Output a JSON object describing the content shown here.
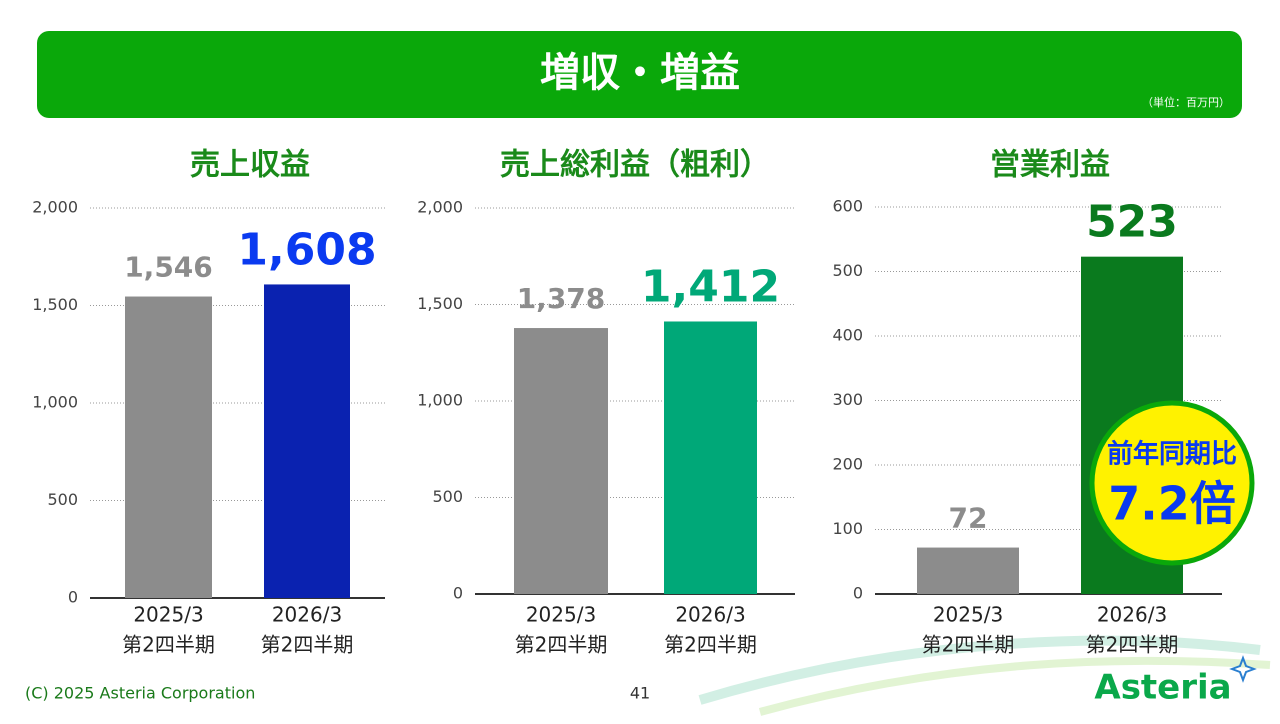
{
  "header": {
    "title": "増収・増益",
    "unit": "（単位：百万円）"
  },
  "chart_data": [
    {
      "type": "bar",
      "title": "売上収益",
      "categories": [
        [
          "2025/3",
          "第2四半期"
        ],
        [
          "2026/3",
          "第2四半期"
        ]
      ],
      "values": [
        1546,
        1608
      ],
      "value_labels": [
        "1,546",
        "1,608"
      ],
      "colors": [
        "#8c8c8c",
        "#0a22b0"
      ],
      "ylim": [
        0,
        2000
      ],
      "yticks": [
        0,
        500,
        {
          "value": 1000,
          "label": "1,000"
        },
        {
          "value": 1500,
          "label": "1,500"
        },
        {
          "value": 2000,
          "label": "2,000"
        }
      ],
      "grid": true
    },
    {
      "type": "bar",
      "title": "売上総利益（粗利）",
      "categories": [
        [
          "2025/3",
          "第2四半期"
        ],
        [
          "2026/3",
          "第2四半期"
        ]
      ],
      "values": [
        1378,
        1412
      ],
      "value_labels": [
        "1,378",
        "1,412"
      ],
      "colors": [
        "#8c8c8c",
        "#00a878"
      ],
      "ylim": [
        0,
        2000
      ],
      "yticks": [
        0,
        500,
        {
          "value": 1000,
          "label": "1,000"
        },
        {
          "value": 1500,
          "label": "1,500"
        },
        {
          "value": 2000,
          "label": "2,000"
        }
      ],
      "grid": true
    },
    {
      "type": "bar",
      "title": "営業利益",
      "categories": [
        [
          "2025/3",
          "第2四半期"
        ],
        [
          "2026/3",
          "第2四半期"
        ]
      ],
      "values": [
        72,
        523
      ],
      "colors": [
        "#8c8c8c",
        "#0a7a1e"
      ],
      "ylim": [
        0,
        600
      ],
      "yticks": [
        0,
        100,
        200,
        300,
        400,
        500,
        600
      ],
      "grid": true,
      "annotations": [
        "前年同期比",
        "7.2倍"
      ]
    }
  ],
  "footer": {
    "copyright": "(C) 2025 Asteria Corporation",
    "page": "41",
    "logo": "Asteria"
  }
}
